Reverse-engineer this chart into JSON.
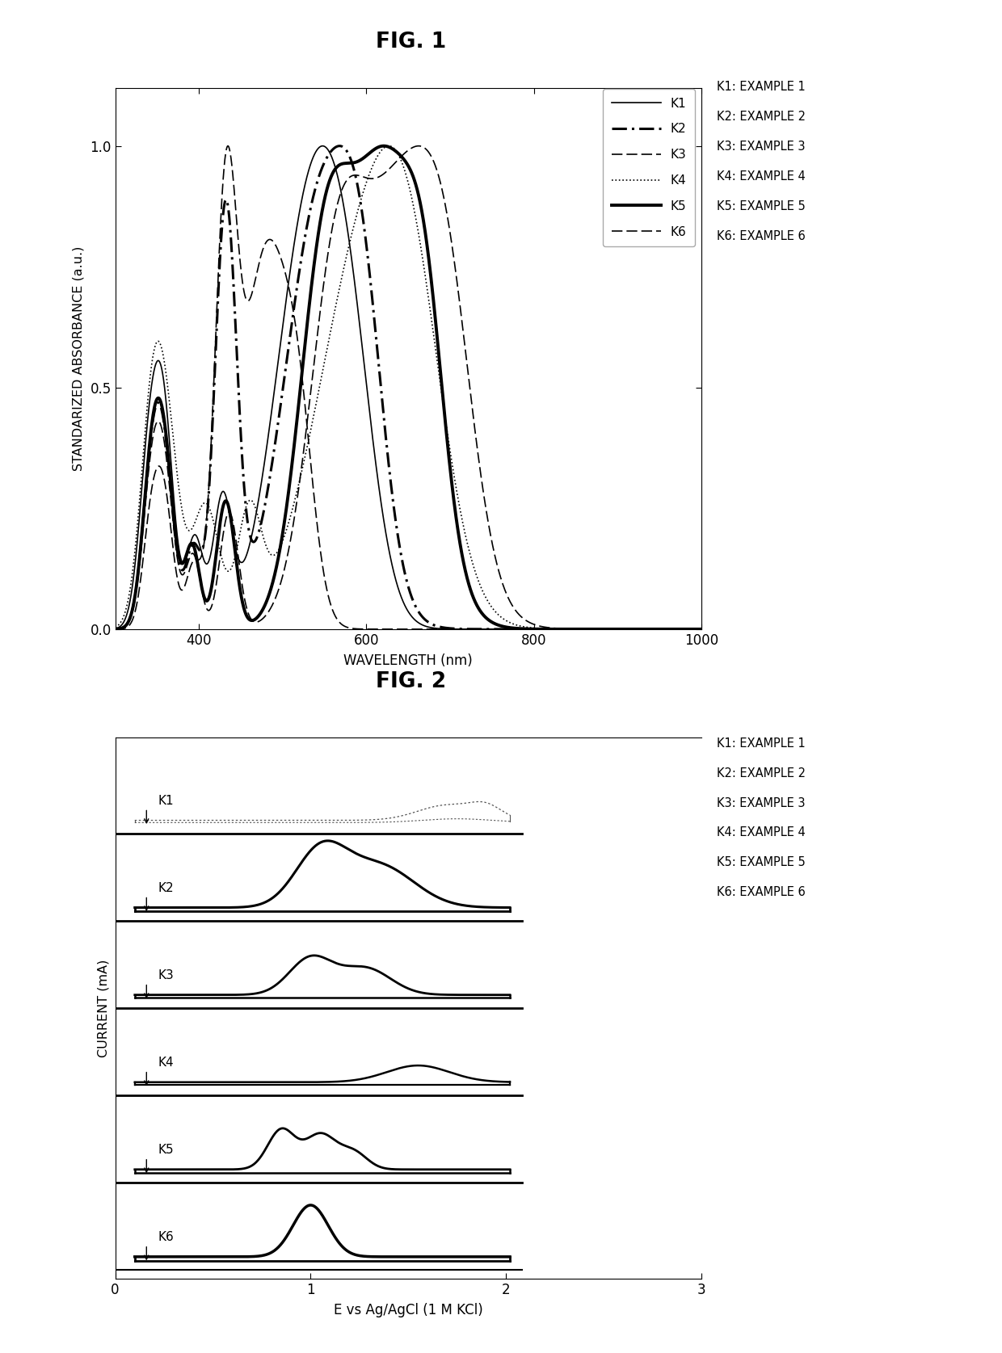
{
  "fig1_title": "FIG. 1",
  "fig2_title": "FIG. 2",
  "fig1_ylabel": "STANDARIZED ABSORBANCE (a.u.)",
  "fig1_xlabel": "WAVELENGTH (nm)",
  "fig2_ylabel": "CURRENT (mA)",
  "fig2_xlabel": "E vs Ag/AgCl (1 M KCl)",
  "legend_k_labels": [
    "K1",
    "K2",
    "K3",
    "K4",
    "K5",
    "K6"
  ],
  "legend_example_labels": [
    "K1: EXAMPLE 1",
    "K2: EXAMPLE 2",
    "K3: EXAMPLE 3",
    "K4: EXAMPLE 4",
    "K5: EXAMPLE 5",
    "K6: EXAMPLE 6"
  ],
  "fig1_xticks": [
    400,
    600,
    800,
    1000
  ],
  "fig1_yticks": [
    0.0,
    0.5,
    1.0
  ],
  "fig2_xticks": [
    0,
    1,
    2,
    3
  ],
  "background_color": "#ffffff"
}
